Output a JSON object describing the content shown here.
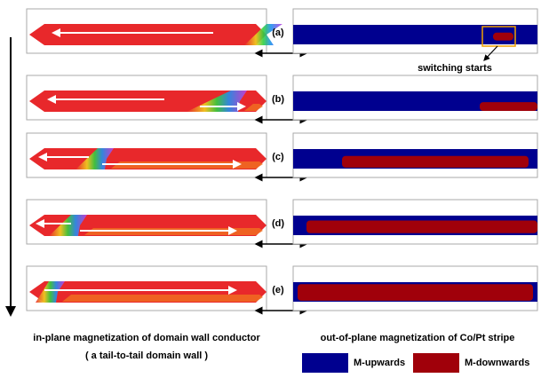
{
  "panels": [
    {
      "label": "(a)"
    },
    {
      "label": "(b)"
    },
    {
      "label": "(c)"
    },
    {
      "label": "(d)"
    },
    {
      "label": "(e)"
    }
  ],
  "annotation": "switching starts",
  "left_caption": "in-plane magnetization of domain wall conductor",
  "left_subcaption": "( a tail-to-tail domain wall )",
  "right_caption": "out-of-plane magnetization of Co/Pt stripe",
  "legend": [
    {
      "name": "M-upwards",
      "color": "#00008f"
    },
    {
      "name": "M-downwards",
      "color": "#a0000a"
    }
  ]
}
